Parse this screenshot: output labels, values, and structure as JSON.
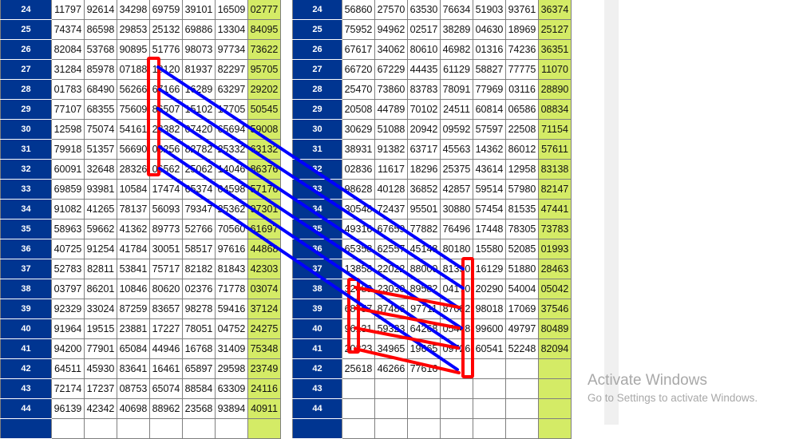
{
  "left_table": {
    "rows": [
      {
        "n": "24",
        "v": [
          "11797",
          "92614",
          "34298",
          "69759",
          "39101",
          "16509",
          "02777"
        ]
      },
      {
        "n": "25",
        "v": [
          "74374",
          "86598",
          "29853",
          "25132",
          "69886",
          "13304",
          "84095"
        ]
      },
      {
        "n": "26",
        "v": [
          "82084",
          "53768",
          "90895",
          "51776",
          "98073",
          "97734",
          "73622"
        ]
      },
      {
        "n": "27",
        "v": [
          "31284",
          "85978",
          "07188",
          "18120",
          "81937",
          "82297",
          "95705"
        ]
      },
      {
        "n": "28",
        "v": [
          "01783",
          "68490",
          "56266",
          "67166",
          "16289",
          "63297",
          "29202"
        ]
      },
      {
        "n": "29",
        "v": [
          "77107",
          "68355",
          "75609",
          "86507",
          "15102",
          "17705",
          "50545"
        ]
      },
      {
        "n": "30",
        "v": [
          "12598",
          "75074",
          "54161",
          "28382",
          "07420",
          "65694",
          "59008"
        ]
      },
      {
        "n": "31",
        "v": [
          "79918",
          "51357",
          "56690",
          "06256",
          "82782",
          "25332",
          "63132"
        ]
      },
      {
        "n": "32",
        "v": [
          "60091",
          "32648",
          "28326",
          "06562",
          "25062",
          "14046",
          "86376"
        ]
      },
      {
        "n": "33",
        "v": [
          "69859",
          "93981",
          "10584",
          "17474",
          "65374",
          "04598",
          "57176"
        ]
      },
      {
        "n": "34",
        "v": [
          "91082",
          "41265",
          "78137",
          "56093",
          "79347",
          "25362",
          "97301"
        ]
      },
      {
        "n": "35",
        "v": [
          "58963",
          "59662",
          "41362",
          "89773",
          "52766",
          "70560",
          "61697"
        ]
      },
      {
        "n": "36",
        "v": [
          "40725",
          "91254",
          "41784",
          "30051",
          "58517",
          "97616",
          "44868"
        ]
      },
      {
        "n": "37",
        "v": [
          "52783",
          "82811",
          "53841",
          "75717",
          "82182",
          "81843",
          "42303"
        ]
      },
      {
        "n": "38",
        "v": [
          "03797",
          "86201",
          "10846",
          "80620",
          "02376",
          "71778",
          "03074"
        ]
      },
      {
        "n": "39",
        "v": [
          "92329",
          "33024",
          "87259",
          "83657",
          "98278",
          "59416",
          "37124"
        ]
      },
      {
        "n": "40",
        "v": [
          "91964",
          "19515",
          "23881",
          "17227",
          "78051",
          "04752",
          "24275"
        ]
      },
      {
        "n": "41",
        "v": [
          "94200",
          "77901",
          "65084",
          "44946",
          "16768",
          "31409",
          "75348"
        ]
      },
      {
        "n": "42",
        "v": [
          "64511",
          "45930",
          "83641",
          "16461",
          "65897",
          "29598",
          "23749"
        ]
      },
      {
        "n": "43",
        "v": [
          "72174",
          "17237",
          "08753",
          "65074",
          "88584",
          "63309",
          "24116"
        ]
      },
      {
        "n": "44",
        "v": [
          "96139",
          "42342",
          "40698",
          "88962",
          "23568",
          "93894",
          "40911"
        ]
      },
      {
        "n": "",
        "v": [
          "",
          "",
          "",
          "",
          "",
          "",
          ""
        ]
      }
    ]
  },
  "right_table": {
    "rows": [
      {
        "n": "24",
        "v": [
          "56860",
          "27570",
          "63530",
          "76634",
          "51903",
          "93761",
          "36374"
        ]
      },
      {
        "n": "25",
        "v": [
          "75952",
          "94962",
          "02517",
          "38289",
          "04630",
          "18969",
          "25127"
        ]
      },
      {
        "n": "26",
        "v": [
          "67617",
          "34062",
          "80610",
          "46982",
          "01316",
          "74236",
          "36351"
        ]
      },
      {
        "n": "27",
        "v": [
          "66720",
          "67229",
          "44435",
          "61129",
          "58827",
          "77775",
          "11070"
        ]
      },
      {
        "n": "28",
        "v": [
          "25470",
          "73860",
          "83783",
          "78091",
          "77969",
          "03116",
          "28890"
        ]
      },
      {
        "n": "29",
        "v": [
          "20508",
          "44789",
          "70102",
          "24511",
          "60814",
          "06586",
          "08834"
        ]
      },
      {
        "n": "30",
        "v": [
          "30629",
          "51088",
          "20942",
          "09592",
          "57597",
          "22508",
          "71154"
        ]
      },
      {
        "n": "31",
        "v": [
          "38931",
          "91382",
          "63717",
          "45563",
          "14362",
          "86012",
          "57611"
        ]
      },
      {
        "n": "32",
        "v": [
          "02836",
          "11617",
          "18296",
          "25375",
          "43614",
          "12958",
          "83138"
        ]
      },
      {
        "n": "33",
        "v": [
          "98628",
          "40128",
          "36852",
          "42857",
          "59514",
          "57980",
          "82147"
        ]
      },
      {
        "n": "34",
        "v": [
          "30548",
          "72437",
          "95501",
          "30880",
          "57454",
          "81535",
          "47441"
        ]
      },
      {
        "n": "35",
        "v": [
          "49316",
          "67659",
          "77882",
          "76496",
          "17448",
          "78305",
          "73783"
        ]
      },
      {
        "n": "36",
        "v": [
          "65358",
          "62557",
          "45148",
          "80180",
          "15580",
          "52085",
          "01993"
        ]
      },
      {
        "n": "37",
        "v": [
          "13858",
          "22022",
          "88000",
          "81330",
          "16129",
          "51880",
          "28463"
        ]
      },
      {
        "n": "38",
        "v": [
          "32489",
          "23030",
          "89582",
          "04170",
          "20290",
          "54004",
          "05042"
        ]
      },
      {
        "n": "39",
        "v": [
          "68757",
          "87486",
          "97711",
          "87082",
          "98018",
          "17069",
          "37546"
        ]
      },
      {
        "n": "40",
        "v": [
          "96131",
          "59323",
          "64268",
          "05448",
          "99600",
          "49797",
          "80489"
        ]
      },
      {
        "n": "41",
        "v": [
          "20323",
          "34965",
          "19665",
          "09726",
          "60541",
          "52248",
          "82094"
        ]
      },
      {
        "n": "42",
        "v": [
          "25618",
          "46266",
          "77616",
          "",
          "",
          "",
          ""
        ]
      },
      {
        "n": "43",
        "v": [
          "",
          "",
          "",
          "",
          "",
          "",
          ""
        ]
      },
      {
        "n": "44",
        "v": [
          "",
          "",
          "",
          "",
          "",
          "",
          ""
        ]
      },
      {
        "n": "",
        "v": [
          "",
          "",
          "",
          "",
          "",
          "",
          ""
        ]
      }
    ]
  },
  "watermark": {
    "title": "Activate Windows",
    "subtitle": "Go to Settings to activate Windows."
  },
  "colors": {
    "row_header": "#003591",
    "last_column": "#d4eb66",
    "annotation_blue": "#0000ff",
    "annotation_red": "#ff0000"
  }
}
